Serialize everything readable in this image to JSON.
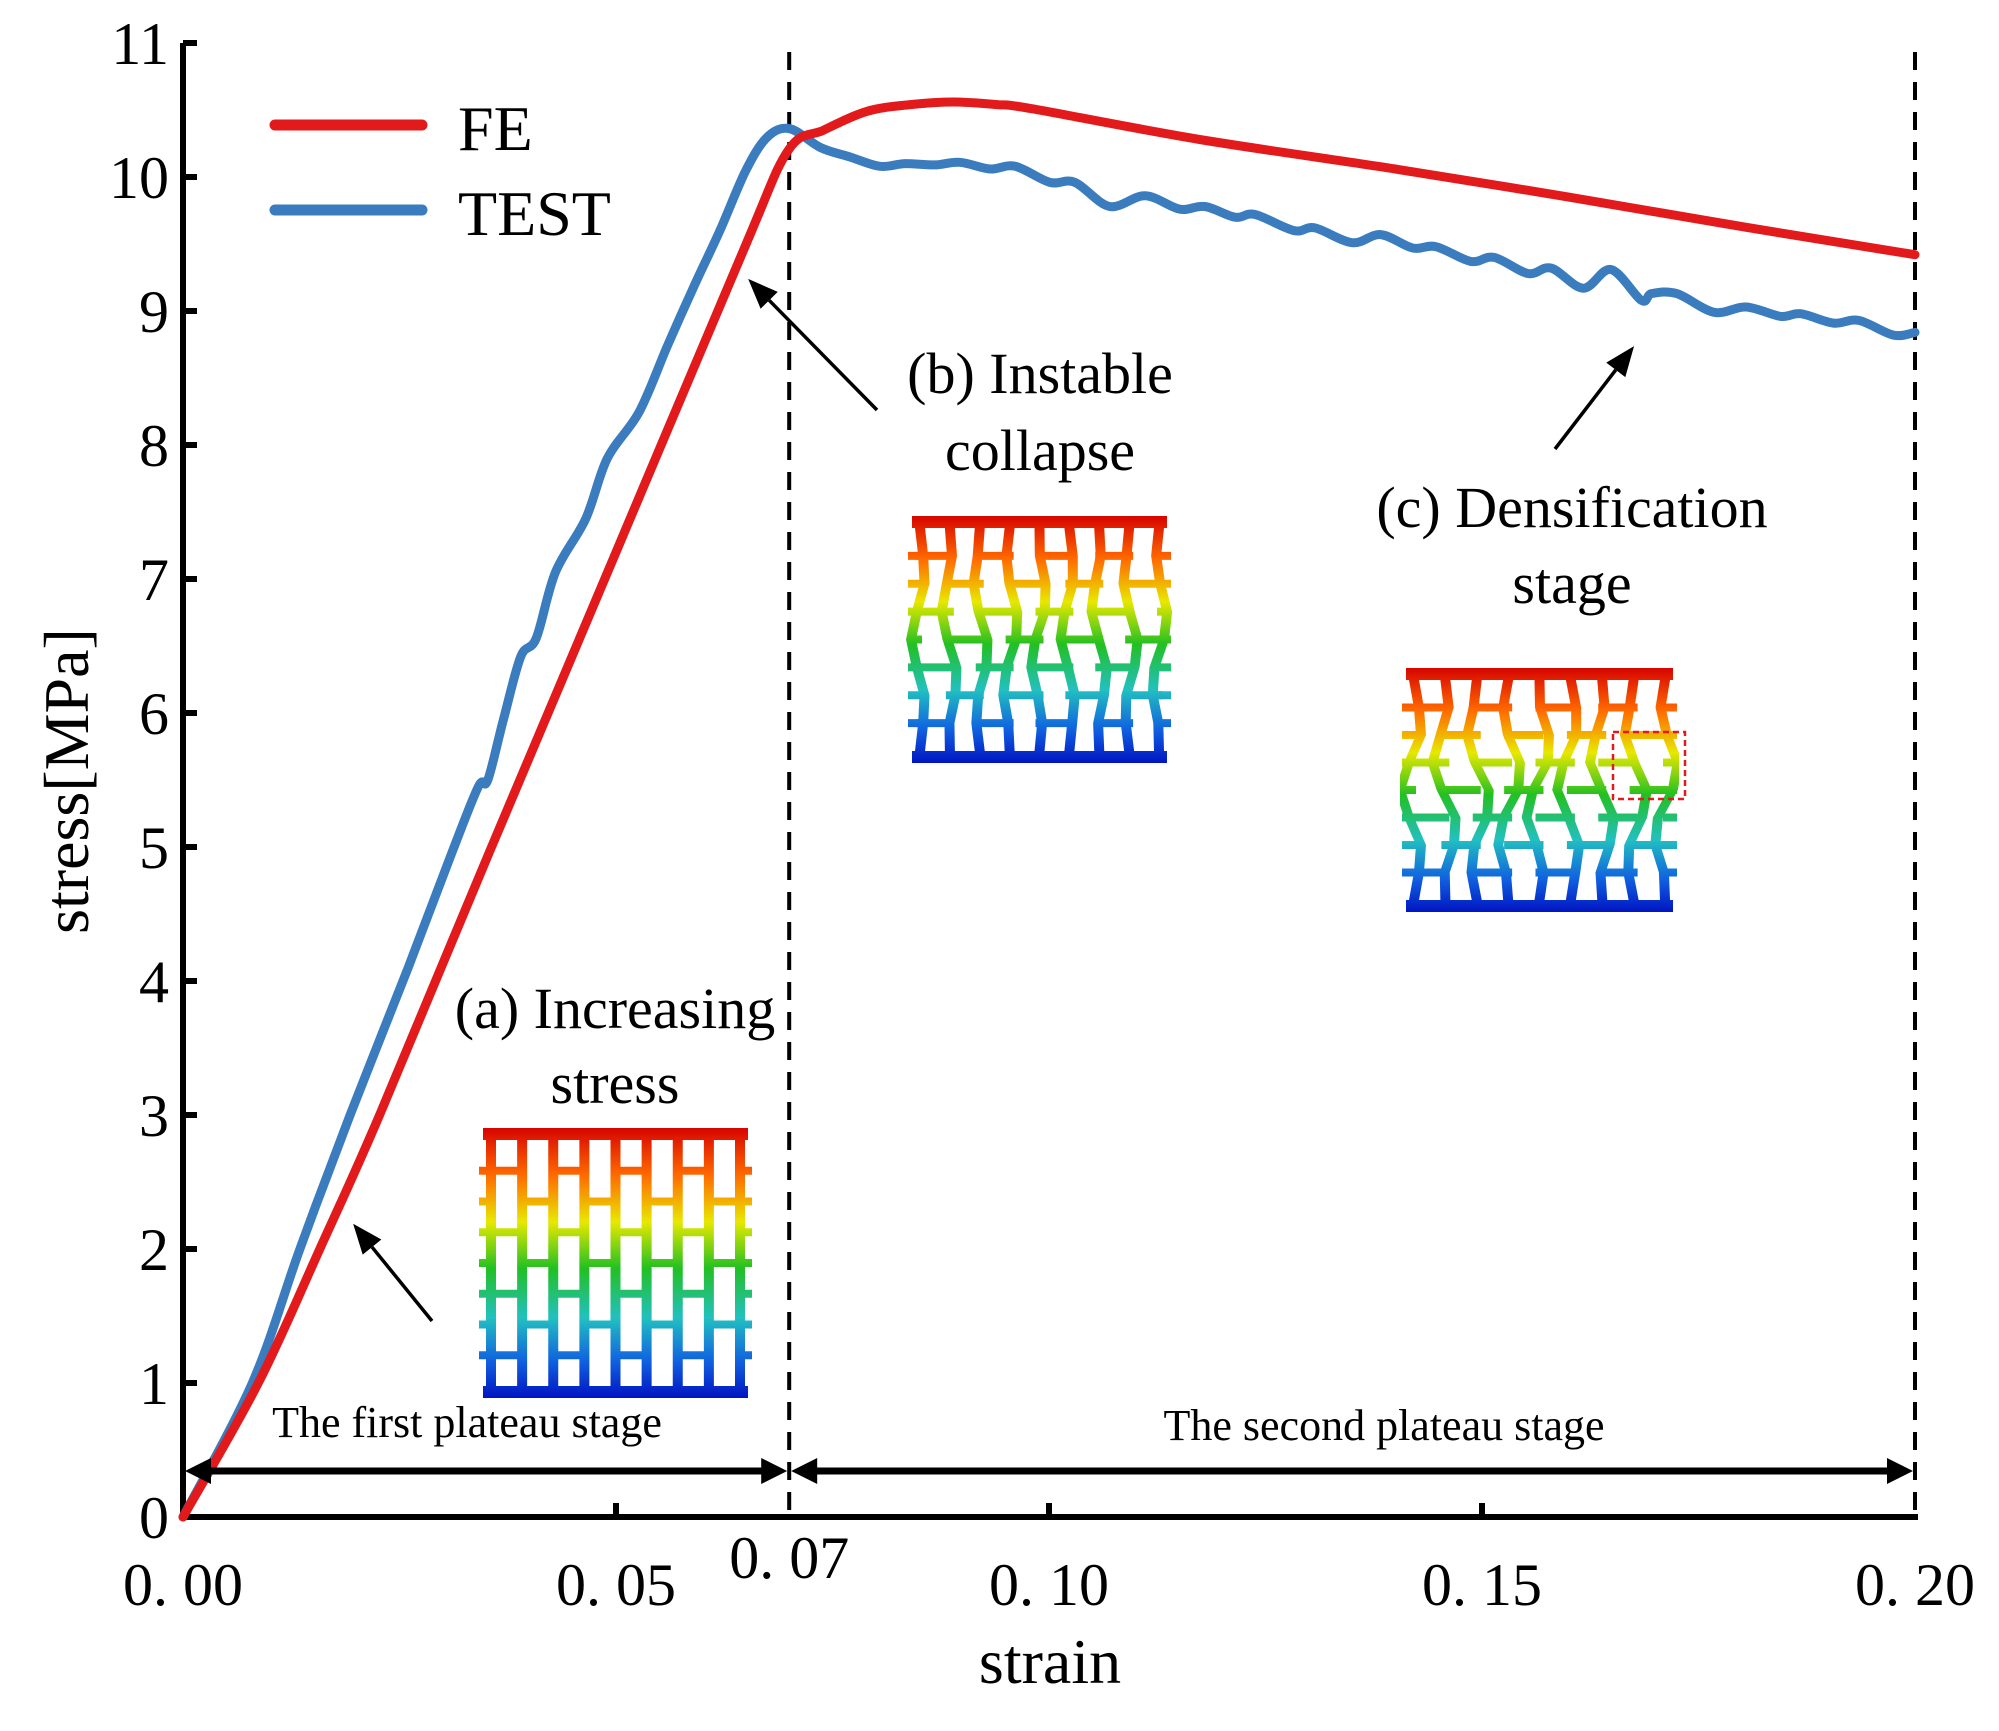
{
  "chart_data": {
    "type": "line",
    "title": "",
    "xlabel": "strain",
    "ylabel": "stress[MPa]",
    "xlim": [
      0,
      0.2
    ],
    "ylim": [
      0,
      11
    ],
    "grid": false,
    "legend_position": "top-left",
    "x_ticks": [
      {
        "value": 0.0,
        "label": "0. 00"
      },
      {
        "value": 0.05,
        "label": "0. 05"
      },
      {
        "value": 0.07,
        "label": "0. 07"
      },
      {
        "value": 0.1,
        "label": "0. 10"
      },
      {
        "value": 0.15,
        "label": "0. 15"
      },
      {
        "value": 0.2,
        "label": "0. 20"
      }
    ],
    "y_ticks": [
      {
        "value": 0,
        "label": "0"
      },
      {
        "value": 1,
        "label": "1"
      },
      {
        "value": 2,
        "label": "2"
      },
      {
        "value": 3,
        "label": "3"
      },
      {
        "value": 4,
        "label": "4"
      },
      {
        "value": 5,
        "label": "5"
      },
      {
        "value": 6,
        "label": "6"
      },
      {
        "value": 7,
        "label": "7"
      },
      {
        "value": 8,
        "label": "8"
      },
      {
        "value": 9,
        "label": "9"
      },
      {
        "value": 10,
        "label": "10"
      },
      {
        "value": 11,
        "label": "11"
      }
    ],
    "series": [
      {
        "name": "FE",
        "color": "#e31a1c",
        "points": [
          [
            0,
            0
          ],
          [
            0.0087,
            1.0
          ],
          [
            0.0158,
            2.0
          ],
          [
            0.0227,
            3.0
          ],
          [
            0.0355,
            4.98
          ],
          [
            0.05,
            7.2
          ],
          [
            0.0647,
            9.45
          ],
          [
            0.0699,
            10.2
          ],
          [
            0.074,
            10.35
          ],
          [
            0.079,
            10.49
          ],
          [
            0.084,
            10.54
          ],
          [
            0.089,
            10.56
          ],
          [
            0.094,
            10.54
          ],
          [
            0.098,
            10.51
          ],
          [
            0.1174,
            10.28
          ],
          [
            0.14,
            10.06
          ],
          [
            0.16,
            9.85
          ],
          [
            0.18,
            9.63
          ],
          [
            0.2,
            9.42
          ]
        ]
      },
      {
        "name": "TEST",
        "color": "#3a7cbd",
        "points": [
          [
            0,
            0
          ],
          [
            0.008,
            1.0
          ],
          [
            0.0135,
            2.0
          ],
          [
            0.0193,
            3.0
          ],
          [
            0.026,
            4.1
          ],
          [
            0.031,
            4.95
          ],
          [
            0.0341,
            5.45
          ],
          [
            0.0352,
            5.5
          ],
          [
            0.037,
            5.95
          ],
          [
            0.039,
            6.42
          ],
          [
            0.0408,
            6.56
          ],
          [
            0.043,
            7.05
          ],
          [
            0.0465,
            7.45
          ],
          [
            0.049,
            7.9
          ],
          [
            0.0527,
            8.25
          ],
          [
            0.056,
            8.75
          ],
          [
            0.0589,
            9.17
          ],
          [
            0.062,
            9.6
          ],
          [
            0.065,
            10.05
          ],
          [
            0.0675,
            10.3
          ],
          [
            0.0701,
            10.36
          ],
          [
            0.0736,
            10.22
          ],
          [
            0.077,
            10.15
          ],
          [
            0.0805,
            10.08
          ],
          [
            0.0834,
            10.1
          ],
          [
            0.0868,
            10.09
          ],
          [
            0.0897,
            10.11
          ],
          [
            0.0932,
            10.06
          ],
          [
            0.0961,
            10.08
          ],
          [
            0.1001,
            9.96
          ],
          [
            0.103,
            9.96
          ],
          [
            0.107,
            9.78
          ],
          [
            0.1111,
            9.86
          ],
          [
            0.1151,
            9.76
          ],
          [
            0.118,
            9.78
          ],
          [
            0.1215,
            9.7
          ],
          [
            0.1238,
            9.72
          ],
          [
            0.1283,
            9.6
          ],
          [
            0.1307,
            9.62
          ],
          [
            0.135,
            9.51
          ],
          [
            0.1383,
            9.57
          ],
          [
            0.142,
            9.47
          ],
          [
            0.1447,
            9.48
          ],
          [
            0.1487,
            9.37
          ],
          [
            0.1514,
            9.4
          ],
          [
            0.1553,
            9.28
          ],
          [
            0.158,
            9.32
          ],
          [
            0.1617,
            9.17
          ],
          [
            0.1649,
            9.31
          ],
          [
            0.1684,
            9.08
          ],
          [
            0.1696,
            9.13
          ],
          [
            0.1725,
            9.13
          ],
          [
            0.1768,
            8.99
          ],
          [
            0.1805,
            9.03
          ],
          [
            0.1845,
            8.96
          ],
          [
            0.1868,
            8.98
          ],
          [
            0.1906,
            8.91
          ],
          [
            0.1935,
            8.93
          ],
          [
            0.1975,
            8.82
          ],
          [
            0.2,
            8.84
          ]
        ]
      }
    ],
    "reference_lines": [
      {
        "axis": "x",
        "value": 0.07,
        "style": "dashed"
      },
      {
        "axis": "x",
        "value": 0.2,
        "style": "dashed"
      }
    ],
    "stages": [
      {
        "label": "The first plateau stage",
        "from": 0.0,
        "to": 0.07,
        "at_stress": 0.4
      },
      {
        "label": "The second plateau stage",
        "from": 0.07,
        "to": 0.2,
        "at_stress": 0.4
      }
    ],
    "annotations": [
      {
        "id": "a",
        "lines": [
          "(a) Increasing",
          "stress"
        ],
        "points_to": [
          0.0195,
          2.2
        ]
      },
      {
        "id": "b",
        "lines": [
          "(b) Instable",
          "collapse"
        ],
        "points_to": [
          0.0651,
          9.25
        ]
      },
      {
        "id": "c",
        "lines": [
          "(c) Densification",
          "stage"
        ],
        "points_to": [
          0.1677,
          8.75
        ]
      }
    ],
    "insets": [
      {
        "id": "a",
        "description": "FE contour of lattice under increasing stress",
        "colormap": [
          "#d00000",
          "#ff7f00",
          "#e6e600",
          "#20c020",
          "#20c0c0",
          "#1060e0",
          "#0010c0"
        ]
      },
      {
        "id": "b",
        "description": "FE contour of lattice at instable collapse",
        "colormap": [
          "#d00000",
          "#ff7f00",
          "#e6e600",
          "#20c020",
          "#20c0c0",
          "#1060e0",
          "#0010c0"
        ]
      },
      {
        "id": "c",
        "description": "FE contour of lattice at densification, with highlighted region",
        "highlight_color": "#e31a1c",
        "colormap": [
          "#d00000",
          "#ff7f00",
          "#e6e600",
          "#20c020",
          "#20c0c0",
          "#1060e0",
          "#0010c0"
        ]
      }
    ]
  }
}
